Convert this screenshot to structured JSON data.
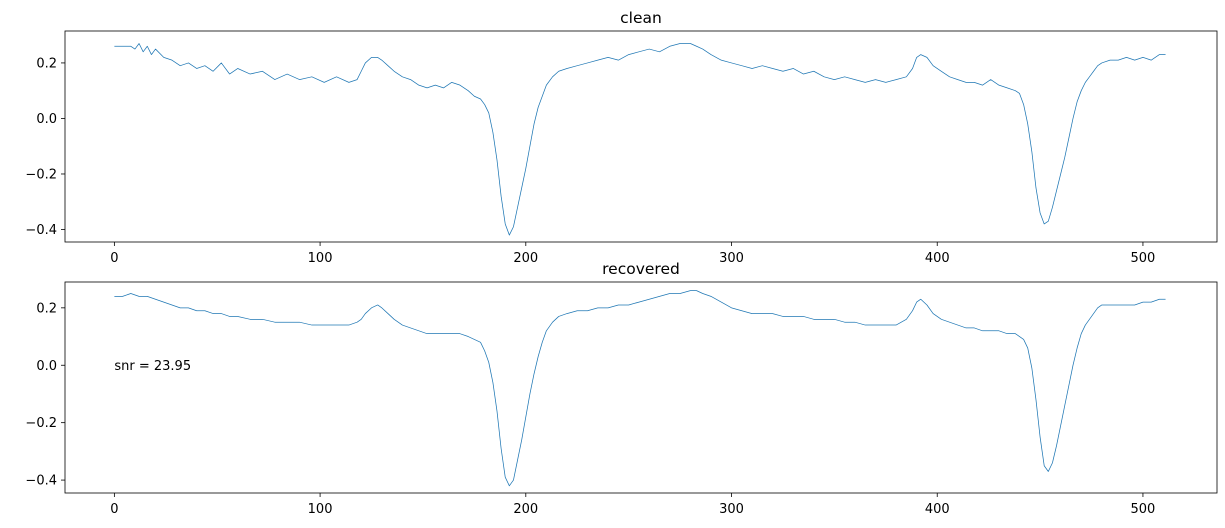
{
  "chart_data": [
    {
      "type": "line",
      "title": "clean",
      "xlim": [
        -24,
        536
      ],
      "ylim": [
        -0.445,
        0.315
      ],
      "xticks": [
        0,
        100,
        200,
        300,
        400,
        500
      ],
      "yticks": [
        -0.4,
        -0.2,
        0.0,
        0.2
      ],
      "xtick_labels": [
        "0",
        "100",
        "200",
        "300",
        "400",
        "500"
      ],
      "ytick_labels": [
        "−0.4",
        "−0.2",
        "0.0",
        "0.2"
      ],
      "series": [
        {
          "color": "#1f77b4",
          "x": [
            0,
            8,
            10,
            12,
            14,
            16,
            18,
            20,
            24,
            28,
            32,
            36,
            40,
            44,
            48,
            52,
            56,
            60,
            66,
            72,
            78,
            84,
            90,
            96,
            102,
            108,
            114,
            118,
            120,
            122,
            125,
            128,
            130,
            133,
            136,
            140,
            144,
            148,
            152,
            156,
            160,
            164,
            168,
            172,
            175,
            178,
            180,
            182,
            184,
            186,
            188,
            190,
            192,
            194,
            196,
            198,
            200,
            202,
            204,
            206,
            208,
            210,
            213,
            216,
            220,
            225,
            230,
            235,
            240,
            245,
            250,
            255,
            260,
            265,
            270,
            275,
            280,
            283,
            286,
            290,
            295,
            300,
            305,
            310,
            315,
            320,
            325,
            330,
            335,
            340,
            345,
            350,
            355,
            360,
            365,
            370,
            375,
            380,
            385,
            388,
            390,
            392,
            395,
            398,
            402,
            406,
            410,
            414,
            418,
            422,
            426,
            430,
            434,
            438,
            440,
            442,
            444,
            446,
            448,
            450,
            452,
            454,
            456,
            458,
            460,
            462,
            464,
            466,
            468,
            470,
            472,
            474,
            476,
            478,
            480,
            484,
            488,
            492,
            496,
            500,
            504,
            508,
            511
          ],
          "values": [
            0.26,
            0.26,
            0.25,
            0.27,
            0.24,
            0.26,
            0.23,
            0.25,
            0.22,
            0.21,
            0.19,
            0.2,
            0.18,
            0.19,
            0.17,
            0.2,
            0.16,
            0.18,
            0.16,
            0.17,
            0.14,
            0.16,
            0.14,
            0.15,
            0.13,
            0.15,
            0.13,
            0.14,
            0.17,
            0.2,
            0.22,
            0.22,
            0.21,
            0.19,
            0.17,
            0.15,
            0.14,
            0.12,
            0.11,
            0.12,
            0.11,
            0.13,
            0.12,
            0.1,
            0.08,
            0.07,
            0.05,
            0.02,
            -0.05,
            -0.15,
            -0.28,
            -0.38,
            -0.42,
            -0.39,
            -0.32,
            -0.25,
            -0.18,
            -0.1,
            -0.02,
            0.04,
            0.08,
            0.12,
            0.15,
            0.17,
            0.18,
            0.19,
            0.2,
            0.21,
            0.22,
            0.21,
            0.23,
            0.24,
            0.25,
            0.24,
            0.26,
            0.27,
            0.27,
            0.26,
            0.25,
            0.23,
            0.21,
            0.2,
            0.19,
            0.18,
            0.19,
            0.18,
            0.17,
            0.18,
            0.16,
            0.17,
            0.15,
            0.14,
            0.15,
            0.14,
            0.13,
            0.14,
            0.13,
            0.14,
            0.15,
            0.18,
            0.22,
            0.23,
            0.22,
            0.19,
            0.17,
            0.15,
            0.14,
            0.13,
            0.13,
            0.12,
            0.14,
            0.12,
            0.11,
            0.1,
            0.09,
            0.05,
            -0.02,
            -0.12,
            -0.25,
            -0.34,
            -0.38,
            -0.37,
            -0.32,
            -0.26,
            -0.2,
            -0.14,
            -0.07,
            0.0,
            0.06,
            0.1,
            0.13,
            0.15,
            0.17,
            0.19,
            0.2,
            0.21,
            0.21,
            0.22,
            0.21,
            0.22,
            0.21,
            0.23,
            0.23
          ]
        }
      ]
    },
    {
      "type": "line",
      "title": "recovered",
      "xlim": [
        -24,
        536
      ],
      "ylim": [
        -0.445,
        0.29
      ],
      "xticks": [
        0,
        100,
        200,
        300,
        400,
        500
      ],
      "yticks": [
        -0.4,
        -0.2,
        0.0,
        0.2
      ],
      "xtick_labels": [
        "0",
        "100",
        "200",
        "300",
        "400",
        "500"
      ],
      "ytick_labels": [
        "−0.4",
        "−0.2",
        "0.0",
        "0.2"
      ],
      "annotation": "snr = 23.95",
      "annotation_x": 0,
      "annotation_y": 0.0,
      "series": [
        {
          "color": "#1f77b4",
          "x": [
            0,
            4,
            8,
            12,
            16,
            20,
            24,
            28,
            32,
            36,
            40,
            44,
            48,
            52,
            56,
            60,
            66,
            72,
            78,
            84,
            90,
            96,
            102,
            108,
            114,
            118,
            120,
            122,
            125,
            128,
            130,
            133,
            136,
            140,
            144,
            148,
            152,
            156,
            160,
            164,
            168,
            172,
            175,
            178,
            180,
            182,
            184,
            186,
            188,
            190,
            192,
            194,
            196,
            198,
            200,
            202,
            204,
            206,
            208,
            210,
            213,
            216,
            220,
            225,
            230,
            235,
            240,
            245,
            250,
            255,
            260,
            265,
            270,
            275,
            280,
            283,
            286,
            290,
            295,
            300,
            305,
            310,
            315,
            320,
            325,
            330,
            335,
            340,
            345,
            350,
            355,
            360,
            365,
            370,
            375,
            380,
            385,
            388,
            390,
            392,
            395,
            398,
            402,
            406,
            410,
            414,
            418,
            422,
            426,
            430,
            434,
            438,
            440,
            442,
            444,
            446,
            448,
            450,
            452,
            454,
            456,
            458,
            460,
            462,
            464,
            466,
            468,
            470,
            472,
            474,
            476,
            478,
            480,
            484,
            488,
            492,
            496,
            500,
            504,
            508,
            511
          ],
          "values": [
            0.24,
            0.24,
            0.25,
            0.24,
            0.24,
            0.23,
            0.22,
            0.21,
            0.2,
            0.2,
            0.19,
            0.19,
            0.18,
            0.18,
            0.17,
            0.17,
            0.16,
            0.16,
            0.15,
            0.15,
            0.15,
            0.14,
            0.14,
            0.14,
            0.14,
            0.15,
            0.16,
            0.18,
            0.2,
            0.21,
            0.2,
            0.18,
            0.16,
            0.14,
            0.13,
            0.12,
            0.11,
            0.11,
            0.11,
            0.11,
            0.11,
            0.1,
            0.09,
            0.08,
            0.05,
            0.01,
            -0.06,
            -0.16,
            -0.29,
            -0.39,
            -0.42,
            -0.4,
            -0.33,
            -0.26,
            -0.18,
            -0.1,
            -0.03,
            0.03,
            0.08,
            0.12,
            0.15,
            0.17,
            0.18,
            0.19,
            0.19,
            0.2,
            0.2,
            0.21,
            0.21,
            0.22,
            0.23,
            0.24,
            0.25,
            0.25,
            0.26,
            0.26,
            0.25,
            0.24,
            0.22,
            0.2,
            0.19,
            0.18,
            0.18,
            0.18,
            0.17,
            0.17,
            0.17,
            0.16,
            0.16,
            0.16,
            0.15,
            0.15,
            0.14,
            0.14,
            0.14,
            0.14,
            0.16,
            0.19,
            0.22,
            0.23,
            0.21,
            0.18,
            0.16,
            0.15,
            0.14,
            0.13,
            0.13,
            0.12,
            0.12,
            0.12,
            0.11,
            0.11,
            0.1,
            0.09,
            0.06,
            -0.01,
            -0.12,
            -0.25,
            -0.35,
            -0.37,
            -0.34,
            -0.28,
            -0.21,
            -0.14,
            -0.07,
            0.0,
            0.06,
            0.11,
            0.14,
            0.16,
            0.18,
            0.2,
            0.21,
            0.21,
            0.21,
            0.21,
            0.21,
            0.22,
            0.22,
            0.23,
            0.23
          ]
        }
      ]
    }
  ]
}
